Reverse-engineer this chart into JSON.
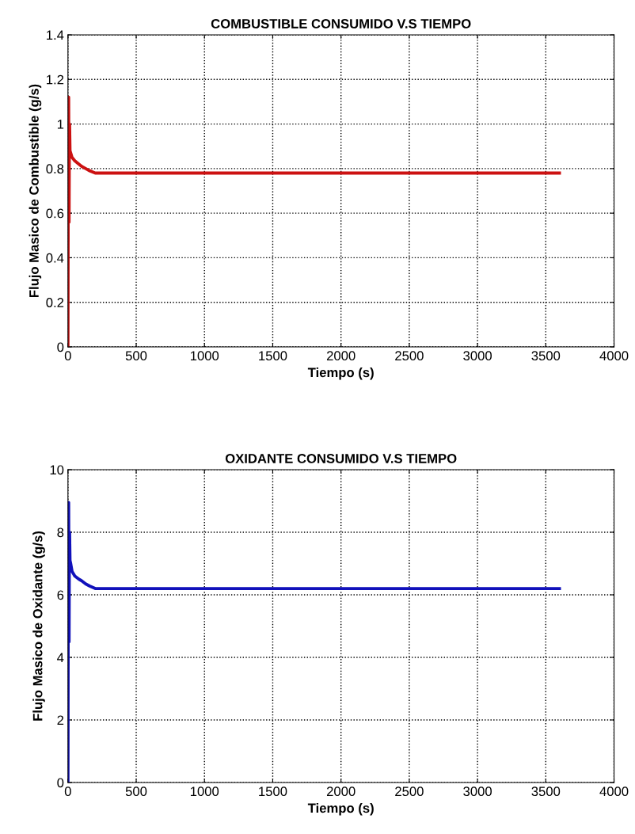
{
  "chart_data": [
    {
      "type": "line",
      "title": "COMBUSTIBLE CONSUMIDO V.S TIEMPO",
      "xlabel": "Tiempo (s)",
      "ylabel": "Flujo Masico de Combustible (g/s)",
      "x": [
        0,
        3,
        5,
        8,
        10,
        12,
        15,
        20,
        30,
        50,
        80,
        100,
        130,
        160,
        200,
        500,
        1000,
        2000,
        3000,
        3600
      ],
      "series": [
        {
          "color": "#cc1111",
          "values": [
            0,
            1.12,
            1.12,
            0.56,
            0.9,
            1.0,
            0.88,
            0.87,
            0.85,
            0.835,
            0.82,
            0.81,
            0.8,
            0.79,
            0.78,
            0.78,
            0.78,
            0.78,
            0.78,
            0.78
          ]
        }
      ],
      "xlim": [
        0,
        4000
      ],
      "xticks": [
        0,
        500,
        1000,
        1500,
        2000,
        2500,
        3000,
        3500,
        4000
      ],
      "ylim": [
        0,
        1.4
      ],
      "yticks": [
        0,
        0.2,
        0.4,
        0.6,
        0.8,
        1,
        1.2,
        1.4
      ],
      "grid": true,
      "line_style": "solid"
    },
    {
      "type": "line",
      "title": "OXIDANTE CONSUMIDO V.S TIEMPO",
      "xlabel": "Tiempo (s)",
      "ylabel": "Flujo Masico de Oxidante (g/s)",
      "x": [
        0,
        3,
        5,
        8,
        10,
        12,
        15,
        20,
        30,
        50,
        80,
        100,
        130,
        160,
        200,
        500,
        1000,
        2000,
        3000,
        3600
      ],
      "series": [
        {
          "color": "#1111bb",
          "values": [
            0,
            8.95,
            8.95,
            4.5,
            7.2,
            8.0,
            7.1,
            7.0,
            6.75,
            6.6,
            6.5,
            6.45,
            6.35,
            6.28,
            6.2,
            6.2,
            6.2,
            6.2,
            6.2,
            6.2
          ]
        }
      ],
      "xlim": [
        0,
        4000
      ],
      "xticks": [
        0,
        500,
        1000,
        1500,
        2000,
        2500,
        3000,
        3500,
        4000
      ],
      "ylim": [
        0,
        10
      ],
      "yticks": [
        0,
        2,
        4,
        6,
        8,
        10
      ],
      "grid": true,
      "line_style": "solid"
    }
  ]
}
